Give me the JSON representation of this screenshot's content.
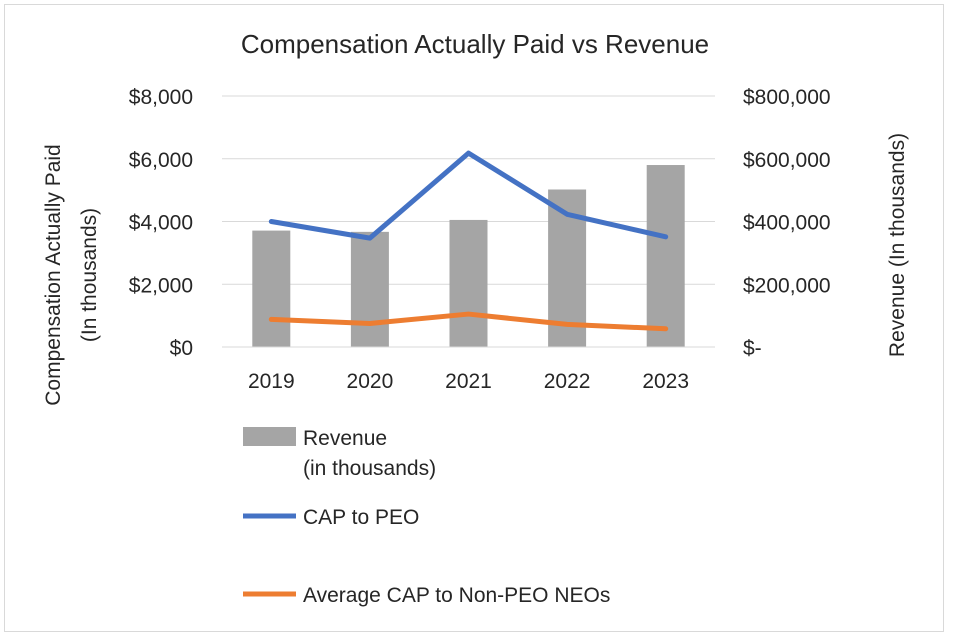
{
  "chart_data": {
    "type": "bar+line",
    "title": "Compensation Actually Paid vs Revenue",
    "categories": [
      "2019",
      "2020",
      "2021",
      "2022",
      "2023"
    ],
    "left_axis": {
      "label_line1": "Compensation Actually Paid",
      "label_line2": "(In thousands)",
      "ylim": [
        0,
        8000
      ],
      "ticks": [
        0,
        2000,
        4000,
        6000,
        8000
      ],
      "tick_labels": [
        "$0",
        "$2,000",
        "$4,000",
        "$6,000",
        "$8,000"
      ]
    },
    "right_axis": {
      "label": "Revenue (In thousands)",
      "ylim": [
        0,
        800000
      ],
      "ticks": [
        0,
        200000,
        400000,
        600000,
        800000
      ],
      "tick_labels": [
        "$-",
        "$200,000",
        "$400,000",
        "$600,000",
        "$800,000"
      ]
    },
    "series": [
      {
        "name": "Revenue",
        "legend_line1": "Revenue",
        "legend_line2": "(in thousands)",
        "type": "bar",
        "axis": "right",
        "color": "#a5a5a5",
        "values": [
          371000,
          367000,
          405000,
          502000,
          580000
        ]
      },
      {
        "name": "CAP to PEO",
        "type": "line",
        "axis": "left",
        "color": "#4472c4",
        "values": [
          4000,
          3470,
          6180,
          4230,
          3510
        ]
      },
      {
        "name": "Average CAP to Non-PEO NEOs",
        "type": "line",
        "axis": "left",
        "color": "#ed7d31",
        "values": [
          880,
          750,
          1050,
          720,
          580
        ]
      }
    ],
    "grid": true,
    "legend_position": "bottom"
  }
}
